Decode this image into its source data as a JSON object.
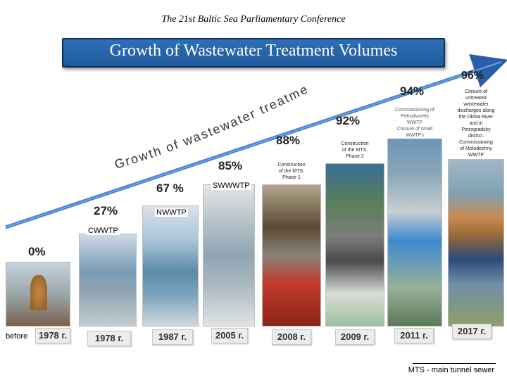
{
  "header": {
    "conference": "The 21st Baltic Sea Parliamentary Conference",
    "title": "Growth of Wastewater Treatment Volumes"
  },
  "arrow_text": "Growth of wastewater treatment volumes",
  "percentages": {
    "p0": "0%",
    "p27": "27%",
    "p67": "67 %",
    "p85": "85%",
    "p88": "88%",
    "p92": "92%",
    "p94": "94%",
    "p96": "96%"
  },
  "stages": {
    "cwwtp": "CWWTP",
    "nwwtp": "NWWTP",
    "swwwtp": "SWWWTP"
  },
  "notes": {
    "mts1": [
      "Construction",
      "of the MTS.",
      "Phase 1"
    ],
    "mts2": [
      "Construction",
      "of the MTS.",
      "Phase 2"
    ],
    "petro": [
      "Commissioning of",
      "Petrodvorets",
      "WWTP",
      "Closure of small",
      "WWTPs"
    ],
    "closure": [
      "Closure of",
      "untreated",
      "wastewater",
      "discharges along",
      "the Okhta River",
      "and in",
      "Petrogradsky",
      "district.",
      "Commissioning",
      "of Molodezhny",
      "WWTP"
    ]
  },
  "years": {
    "before_label": "before",
    "y1978a": "1978 г.",
    "y1978b": "1978 г.",
    "y1987": "1987 г.",
    "y2005": "2005 г.",
    "y2008": "2008 г.",
    "y2009": "2009 г.",
    "y2011": "2011 г.",
    "y2017": "2017 г."
  },
  "footnote": "MTS - main tunnel sewer",
  "colors": {
    "banner": "#2360a6",
    "arrow": "#3f7dc9"
  }
}
